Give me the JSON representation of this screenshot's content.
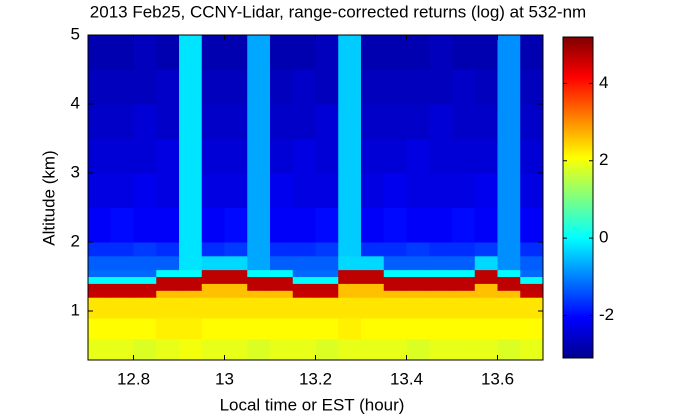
{
  "chart_data": {
    "type": "heatmap",
    "title": "2013 Feb25, CCNY-Lidar, range-corrected returns (log) at 532-nm",
    "x_label": "Local time or EST (hour)",
    "y_label": "Altitude (km)",
    "xlim": [
      12.7,
      13.7
    ],
    "ylim": [
      0.29,
      5
    ],
    "xticks": [
      12.8,
      13,
      13.2,
      13.4,
      13.6
    ],
    "yticks": [
      1,
      2,
      3,
      4,
      5
    ],
    "x_edges": [
      12.7,
      12.75,
      12.8,
      12.85,
      12.9,
      12.95,
      13,
      13.05,
      13.1,
      13.15,
      13.2,
      13.25,
      13.3,
      13.35,
      13.4,
      13.45,
      13.5,
      13.55,
      13.6,
      13.65,
      13.7
    ],
    "y_edges": [
      0.29,
      0.6,
      0.9,
      1.2,
      1.3,
      1.4,
      1.5,
      1.6,
      1.8,
      2,
      2.5,
      3,
      3.5,
      4,
      4.5,
      5
    ],
    "values": [
      [
        1.9,
        1.9,
        1.8,
        1.9,
        2.0,
        1.9,
        1.9,
        1.8,
        1.9,
        1.9,
        1.8,
        1.9,
        1.9,
        1.9,
        1.8,
        1.9,
        1.9,
        1.9,
        1.8,
        1.9
      ],
      [
        2.1,
        2.1,
        2.1,
        2.2,
        2.2,
        2.1,
        2.1,
        2.1,
        2.1,
        2.1,
        2.1,
        2.2,
        2.1,
        2.1,
        2.1,
        2.1,
        2.1,
        2.1,
        2.1,
        2.1
      ],
      [
        2.3,
        2.3,
        2.3,
        2.3,
        2.3,
        2.3,
        2.3,
        2.3,
        2.3,
        2.3,
        2.3,
        2.3,
        2.3,
        2.3,
        2.3,
        2.3,
        2.3,
        2.3,
        2.3,
        2.3
      ],
      [
        4.6,
        4.6,
        4.6,
        2.6,
        2.6,
        2.6,
        2.6,
        2.6,
        2.6,
        4.6,
        4.6,
        2.6,
        2.6,
        2.6,
        2.6,
        2.6,
        2.6,
        2.6,
        2.6,
        4.6
      ],
      [
        4.7,
        4.7,
        4.7,
        4.7,
        4.7,
        2.6,
        2.6,
        4.7,
        4.7,
        4.7,
        4.7,
        2.6,
        2.6,
        4.7,
        4.7,
        4.7,
        4.7,
        2.6,
        4.7,
        4.7
      ],
      [
        0.0,
        0.0,
        0.0,
        4.7,
        4.7,
        4.7,
        4.7,
        4.7,
        4.7,
        0.0,
        0.0,
        4.7,
        4.7,
        4.7,
        4.7,
        4.7,
        4.7,
        4.7,
        4.7,
        0.0
      ],
      [
        -1.2,
        -1.2,
        -1.2,
        0.0,
        0.0,
        4.7,
        4.7,
        0.0,
        0.0,
        -1.2,
        -1.2,
        4.7,
        4.7,
        0.0,
        0.0,
        0.0,
        0.0,
        4.7,
        0.0,
        -1.2
      ],
      [
        -1.3,
        -1.3,
        -1.3,
        -1.3,
        -0.2,
        -0.3,
        -0.3,
        -0.7,
        -1.3,
        -1.3,
        -1.3,
        -0.3,
        -0.3,
        -1.3,
        -1.3,
        -1.3,
        -1.3,
        -0.3,
        -0.9,
        -1.3
      ],
      [
        -1.7,
        -1.7,
        -1.6,
        -1.7,
        -0.2,
        -1.7,
        -1.6,
        -0.7,
        -1.7,
        -1.7,
        -1.6,
        -0.4,
        -1.7,
        -1.7,
        -1.6,
        -1.7,
        -1.7,
        -1.6,
        -0.9,
        -1.7
      ],
      [
        -2.1,
        -2.0,
        -2.1,
        -2.1,
        -0.2,
        -2.1,
        -2.0,
        -0.7,
        -2.1,
        -2.1,
        -2.0,
        -0.4,
        -2.1,
        -2.0,
        -2.1,
        -2.1,
        -2.0,
        -2.1,
        -0.9,
        -2.1
      ],
      [
        -2.3,
        -2.3,
        -2.2,
        -2.3,
        -0.2,
        -2.3,
        -2.3,
        -0.7,
        -2.2,
        -2.3,
        -2.3,
        -0.4,
        -2.3,
        -2.2,
        -2.3,
        -2.3,
        -2.3,
        -2.2,
        -0.9,
        -2.3
      ],
      [
        -2.4,
        -2.4,
        -2.4,
        -2.3,
        -0.2,
        -2.4,
        -2.4,
        -0.7,
        -2.4,
        -2.3,
        -2.4,
        -0.4,
        -2.4,
        -2.4,
        -2.3,
        -2.4,
        -2.4,
        -2.4,
        -0.9,
        -2.4
      ],
      [
        -2.5,
        -2.5,
        -2.4,
        -2.5,
        -0.2,
        -2.5,
        -2.5,
        -0.7,
        -2.5,
        -2.5,
        -2.4,
        -0.4,
        -2.5,
        -2.5,
        -2.5,
        -2.4,
        -2.5,
        -2.5,
        -0.9,
        -2.5
      ],
      [
        -2.6,
        -2.6,
        -2.6,
        -2.5,
        -0.2,
        -2.6,
        -2.6,
        -0.7,
        -2.6,
        -2.5,
        -2.6,
        -0.4,
        -2.6,
        -2.6,
        -2.6,
        -2.6,
        -2.5,
        -2.6,
        -0.9,
        -2.6
      ],
      [
        -2.7,
        -2.7,
        -2.6,
        -2.7,
        -0.2,
        -2.7,
        -2.7,
        -0.7,
        -2.7,
        -2.7,
        -2.6,
        -0.4,
        -2.7,
        -2.7,
        -2.7,
        -2.6,
        -2.7,
        -2.7,
        -0.9,
        -2.7
      ]
    ],
    "colormap": "jet",
    "clim": [
      -3.1,
      5.2
    ],
    "cticks": [
      -2,
      0,
      2,
      4
    ]
  }
}
